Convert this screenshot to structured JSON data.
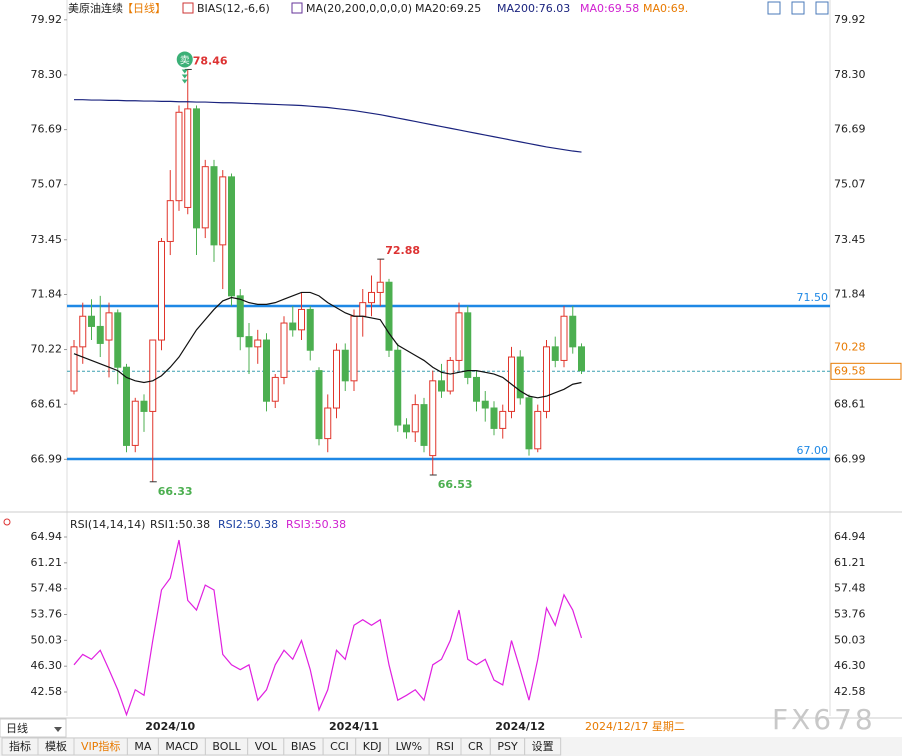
{
  "header": {
    "symbol": "美原油连续",
    "period": "【日线】",
    "bias": "BIAS(12,-6,6)",
    "ma": "MA(20,200,0,0,0,0)",
    "ma20": "MA20:69.25",
    "ma200": "MA200:76.03",
    "ma0a": "MA0:69.58",
    "ma0b": "MA0:69."
  },
  "chart_data": [
    {
      "type": "candlestick",
      "signal": "卖",
      "ylim": [
        65.5,
        80.15
      ],
      "yticks": [
        79.92,
        {
          "value": 78.3,
          "label": "78.30"
        },
        76.69,
        75.07,
        73.45,
        71.84,
        70.22,
        68.61,
        66.99
      ],
      "candles": [
        [
          69.0,
          70.5,
          68.9,
          70.3
        ],
        [
          70.3,
          71.6,
          69.8,
          71.2
        ],
        [
          71.2,
          71.7,
          70.5,
          70.9
        ],
        [
          70.9,
          71.8,
          70.0,
          70.4
        ],
        [
          70.5,
          71.6,
          69.4,
          71.3
        ],
        [
          71.3,
          71.4,
          69.2,
          69.7
        ],
        [
          69.7,
          69.8,
          67.2,
          67.4
        ],
        [
          67.4,
          68.8,
          67.2,
          68.7
        ],
        [
          68.7,
          68.9,
          67.8,
          68.4
        ],
        [
          68.4,
          70.5,
          66.33,
          70.5
        ],
        [
          70.5,
          73.5,
          70.2,
          73.4
        ],
        [
          73.4,
          75.5,
          73.0,
          74.6
        ],
        [
          74.6,
          77.4,
          74.3,
          77.2
        ],
        [
          74.4,
          78.46,
          74.2,
          77.3
        ],
        [
          77.3,
          77.4,
          73.0,
          73.8
        ],
        [
          73.8,
          75.8,
          73.5,
          75.6
        ],
        [
          75.6,
          75.8,
          72.8,
          73.3
        ],
        [
          73.3,
          75.5,
          72.0,
          75.3
        ],
        [
          75.3,
          75.4,
          71.5,
          71.8
        ],
        [
          71.8,
          72.0,
          70.2,
          70.6
        ],
        [
          70.6,
          71.0,
          69.5,
          70.3
        ],
        [
          70.3,
          70.8,
          69.8,
          70.5
        ],
        [
          70.5,
          70.7,
          68.4,
          68.7
        ],
        [
          68.7,
          69.5,
          68.5,
          69.4
        ],
        [
          69.4,
          71.2,
          69.2,
          71.0
        ],
        [
          71.0,
          71.5,
          70.6,
          70.8
        ],
        [
          70.8,
          71.9,
          70.5,
          71.4
        ],
        [
          71.4,
          71.5,
          69.9,
          70.2
        ],
        [
          69.6,
          69.7,
          67.4,
          67.6
        ],
        [
          67.6,
          68.9,
          67.2,
          68.5
        ],
        [
          68.5,
          70.4,
          68.2,
          70.2
        ],
        [
          70.2,
          70.4,
          69.0,
          69.3
        ],
        [
          69.3,
          71.4,
          69.0,
          71.2
        ],
        [
          71.2,
          72.0,
          70.6,
          71.6
        ],
        [
          71.6,
          72.4,
          71.2,
          71.9
        ],
        [
          71.9,
          72.88,
          71.5,
          72.2
        ],
        [
          72.2,
          72.3,
          70.0,
          70.2
        ],
        [
          70.2,
          70.4,
          67.8,
          68.0
        ],
        [
          68.0,
          68.2,
          67.6,
          67.8
        ],
        [
          67.8,
          68.9,
          67.5,
          68.6
        ],
        [
          68.6,
          68.8,
          67.2,
          67.4
        ],
        [
          67.1,
          69.6,
          66.53,
          69.3
        ],
        [
          69.3,
          69.8,
          68.8,
          69.0
        ],
        [
          69.0,
          70.0,
          68.9,
          69.9
        ],
        [
          69.9,
          71.6,
          69.6,
          71.3
        ],
        [
          71.3,
          71.5,
          69.2,
          69.4
        ],
        [
          69.4,
          69.6,
          68.4,
          68.7
        ],
        [
          68.7,
          69.0,
          68.1,
          68.5
        ],
        [
          68.5,
          68.7,
          67.7,
          67.9
        ],
        [
          67.9,
          68.6,
          67.6,
          68.4
        ],
        [
          68.4,
          70.3,
          68.2,
          70.0
        ],
        [
          70.0,
          70.2,
          68.6,
          68.8
        ],
        [
          68.8,
          68.9,
          67.1,
          67.3
        ],
        [
          67.3,
          68.6,
          67.2,
          68.4
        ],
        [
          68.4,
          70.5,
          68.2,
          70.3
        ],
        [
          70.3,
          70.6,
          69.7,
          69.9
        ],
        [
          69.9,
          71.5,
          69.7,
          71.2
        ],
        [
          71.2,
          71.5,
          70.1,
          70.3
        ],
        [
          70.3,
          70.4,
          69.5,
          69.6
        ]
      ],
      "series": [
        {
          "name": "MA200",
          "color": "#1a237e",
          "values": [
            77.57,
            77.57,
            77.56,
            77.56,
            77.55,
            77.55,
            77.54,
            77.54,
            77.53,
            77.53,
            77.52,
            77.52,
            77.51,
            77.51,
            77.5,
            77.5,
            77.49,
            77.48,
            77.48,
            77.47,
            77.46,
            77.45,
            77.44,
            77.43,
            77.42,
            77.41,
            77.4,
            77.38,
            77.36,
            77.34,
            77.31,
            77.28,
            77.25,
            77.21,
            77.17,
            77.13,
            77.08,
            77.03,
            76.98,
            76.93,
            76.88,
            76.83,
            76.78,
            76.73,
            76.68,
            76.63,
            76.58,
            76.53,
            76.48,
            76.43,
            76.38,
            76.33,
            76.28,
            76.23,
            76.18,
            76.14,
            76.1,
            76.06,
            76.03
          ]
        },
        {
          "name": "MA20",
          "color": "#111111",
          "values": [
            70.1,
            70.0,
            69.9,
            69.8,
            69.7,
            69.6,
            69.4,
            69.3,
            69.25,
            69.3,
            69.45,
            69.7,
            70.0,
            70.4,
            70.8,
            71.1,
            71.4,
            71.65,
            71.75,
            71.7,
            71.6,
            71.55,
            71.55,
            71.6,
            71.7,
            71.8,
            71.9,
            71.9,
            71.8,
            71.6,
            71.45,
            71.3,
            71.2,
            71.2,
            71.15,
            71.1,
            70.7,
            70.35,
            70.2,
            70.05,
            69.9,
            69.7,
            69.55,
            69.5,
            69.55,
            69.6,
            69.6,
            69.55,
            69.5,
            69.4,
            69.2,
            69.0,
            68.85,
            68.8,
            68.85,
            68.95,
            69.05,
            69.2,
            69.25
          ]
        }
      ],
      "hlines": [
        {
          "value": 71.5,
          "label": "71.50"
        },
        {
          "value": 67,
          "label": "67.00"
        }
      ],
      "last_price": 69.58,
      "price_tag": 70.28,
      "date_ticks": [
        {
          "value": 11,
          "label": "2024/10"
        },
        {
          "value": 32,
          "label": "2024/11"
        },
        {
          "value": 51,
          "label": "2024/12"
        }
      ],
      "date_current": "2024/12/17 星期二"
    },
    {
      "type": "line",
      "title": "RSI(14,14,14)",
      "legend": [
        "RSI1:50.38",
        "RSI2:50.38",
        "RSI3:50.38"
      ],
      "ylim": [
        39.26,
        66.67
      ],
      "yticks": [
        64.94,
        61.21,
        57.48,
        53.76,
        50.03,
        {
          "value": 46.3,
          "label": "46.30"
        },
        42.58
      ],
      "series": [
        {
          "name": "RSI",
          "color": "#e020e0",
          "values": [
            46.5,
            48,
            47.3,
            48.6,
            45.8,
            42.9,
            39.3,
            42.9,
            42.1,
            50,
            57.3,
            59,
            64.5,
            55.8,
            54.4,
            58,
            57.3,
            48,
            46.5,
            45.8,
            46.5,
            41.4,
            42.9,
            46.5,
            48.6,
            47.3,
            50,
            45.8,
            40,
            42.9,
            48.6,
            47.3,
            52.2,
            53,
            52.2,
            53,
            46.5,
            41.4,
            42.1,
            42.9,
            41.4,
            46.5,
            47.3,
            50,
            54.4,
            47.3,
            46.5,
            47.3,
            44.3,
            43.6,
            50,
            45.8,
            41.4,
            47.3,
            54.7,
            52.2,
            56.6,
            54.4,
            50.38
          ]
        }
      ]
    }
  ],
  "period_tab": "日线",
  "tabs": [
    "指标",
    "模板",
    "VIP指标",
    "MA",
    "MACD",
    "BOLL",
    "VOL",
    "BIAS",
    "CCI",
    "KDJ",
    "LW%",
    "RSI",
    "CR",
    "PSY",
    "设置"
  ],
  "watermark": "FX678"
}
